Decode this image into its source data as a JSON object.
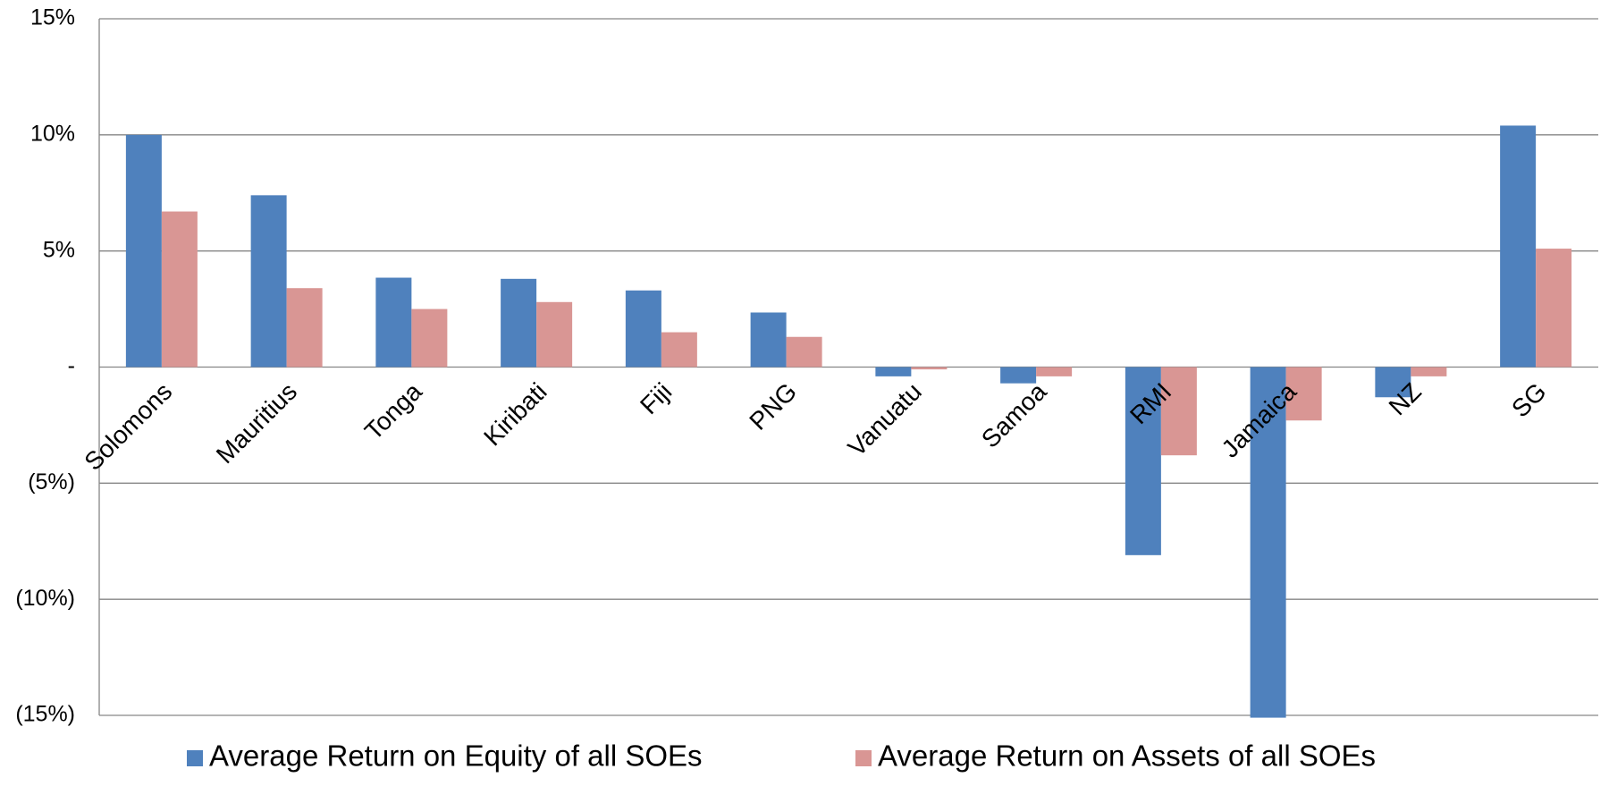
{
  "chart_data": {
    "type": "bar",
    "categories": [
      "Solomons",
      "Mauritius",
      "Tonga",
      "Kiribati",
      "Fiji",
      "PNG",
      "Vanuatu",
      "Samoa",
      "RMI",
      "Jamaica",
      "NZ",
      "SG"
    ],
    "series": [
      {
        "name": "Average Return on Equity of all SOEs",
        "color": "#4f81bd",
        "values": [
          10.0,
          7.4,
          3.85,
          3.8,
          3.3,
          2.35,
          -0.4,
          -0.7,
          -8.1,
          -15.1,
          -1.3,
          10.4
        ]
      },
      {
        "name": "Average Return on Assets of all SOEs",
        "color": "#d99694",
        "values": [
          6.7,
          3.4,
          2.5,
          2.8,
          1.5,
          1.3,
          -0.1,
          -0.4,
          -3.8,
          -2.3,
          -0.4,
          5.1
        ]
      }
    ],
    "ylim": [
      -15,
      15
    ],
    "yticks": [
      {
        "value": 15,
        "label": "15%"
      },
      {
        "value": 10,
        "label": "10%"
      },
      {
        "value": 5,
        "label": "5%"
      },
      {
        "value": 0,
        "label": "-"
      },
      {
        "value": -5,
        "label": "(5%)"
      },
      {
        "value": -10,
        "label": "(10%)"
      },
      {
        "value": -15,
        "label": "(15%)"
      }
    ],
    "negative_tick_color": "#ff0000",
    "grid": true,
    "legend": "bottom"
  }
}
